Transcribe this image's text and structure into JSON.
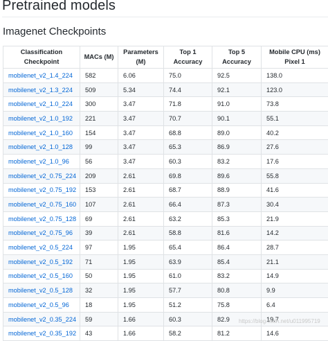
{
  "page": {
    "title": "Pretrained models",
    "subtitle": "Imagenet Checkpoints",
    "watermark": "https://blog.csdn.net/u011995719"
  },
  "table": {
    "headers": [
      "Classification Checkpoint",
      "MACs (M)",
      "Parameters (M)",
      "Top 1 Accuracy",
      "Top 5 Accuracy",
      "Mobile CPU (ms) Pixel 1"
    ],
    "rows": [
      [
        "mobilenet_v2_1.4_224",
        "582",
        "6.06",
        "75.0",
        "92.5",
        "138.0"
      ],
      [
        "mobilenet_v2_1.3_224",
        "509",
        "5.34",
        "74.4",
        "92.1",
        "123.0"
      ],
      [
        "mobilenet_v2_1.0_224",
        "300",
        "3.47",
        "71.8",
        "91.0",
        "73.8"
      ],
      [
        "mobilenet_v2_1.0_192",
        "221",
        "3.47",
        "70.7",
        "90.1",
        "55.1"
      ],
      [
        "mobilenet_v2_1.0_160",
        "154",
        "3.47",
        "68.8",
        "89.0",
        "40.2"
      ],
      [
        "mobilenet_v2_1.0_128",
        "99",
        "3.47",
        "65.3",
        "86.9",
        "27.6"
      ],
      [
        "mobilenet_v2_1.0_96",
        "56",
        "3.47",
        "60.3",
        "83.2",
        "17.6"
      ],
      [
        "mobilenet_v2_0.75_224",
        "209",
        "2.61",
        "69.8",
        "89.6",
        "55.8"
      ],
      [
        "mobilenet_v2_0.75_192",
        "153",
        "2.61",
        "68.7",
        "88.9",
        "41.6"
      ],
      [
        "mobilenet_v2_0.75_160",
        "107",
        "2.61",
        "66.4",
        "87.3",
        "30.4"
      ],
      [
        "mobilenet_v2_0.75_128",
        "69",
        "2.61",
        "63.2",
        "85.3",
        "21.9"
      ],
      [
        "mobilenet_v2_0.75_96",
        "39",
        "2.61",
        "58.8",
        "81.6",
        "14.2"
      ],
      [
        "mobilenet_v2_0.5_224",
        "97",
        "1.95",
        "65.4",
        "86.4",
        "28.7"
      ],
      [
        "mobilenet_v2_0.5_192",
        "71",
        "1.95",
        "63.9",
        "85.4",
        "21.1"
      ],
      [
        "mobilenet_v2_0.5_160",
        "50",
        "1.95",
        "61.0",
        "83.2",
        "14.9"
      ],
      [
        "mobilenet_v2_0.5_128",
        "32",
        "1.95",
        "57.7",
        "80.8",
        "9.9"
      ],
      [
        "mobilenet_v2_0.5_96",
        "18",
        "1.95",
        "51.2",
        "75.8",
        "6.4"
      ],
      [
        "mobilenet_v2_0.35_224",
        "59",
        "1.66",
        "60.3",
        "82.9",
        "19.7"
      ],
      [
        "mobilenet_v2_0.35_192",
        "43",
        "1.66",
        "58.2",
        "81.2",
        "14.6"
      ]
    ]
  }
}
